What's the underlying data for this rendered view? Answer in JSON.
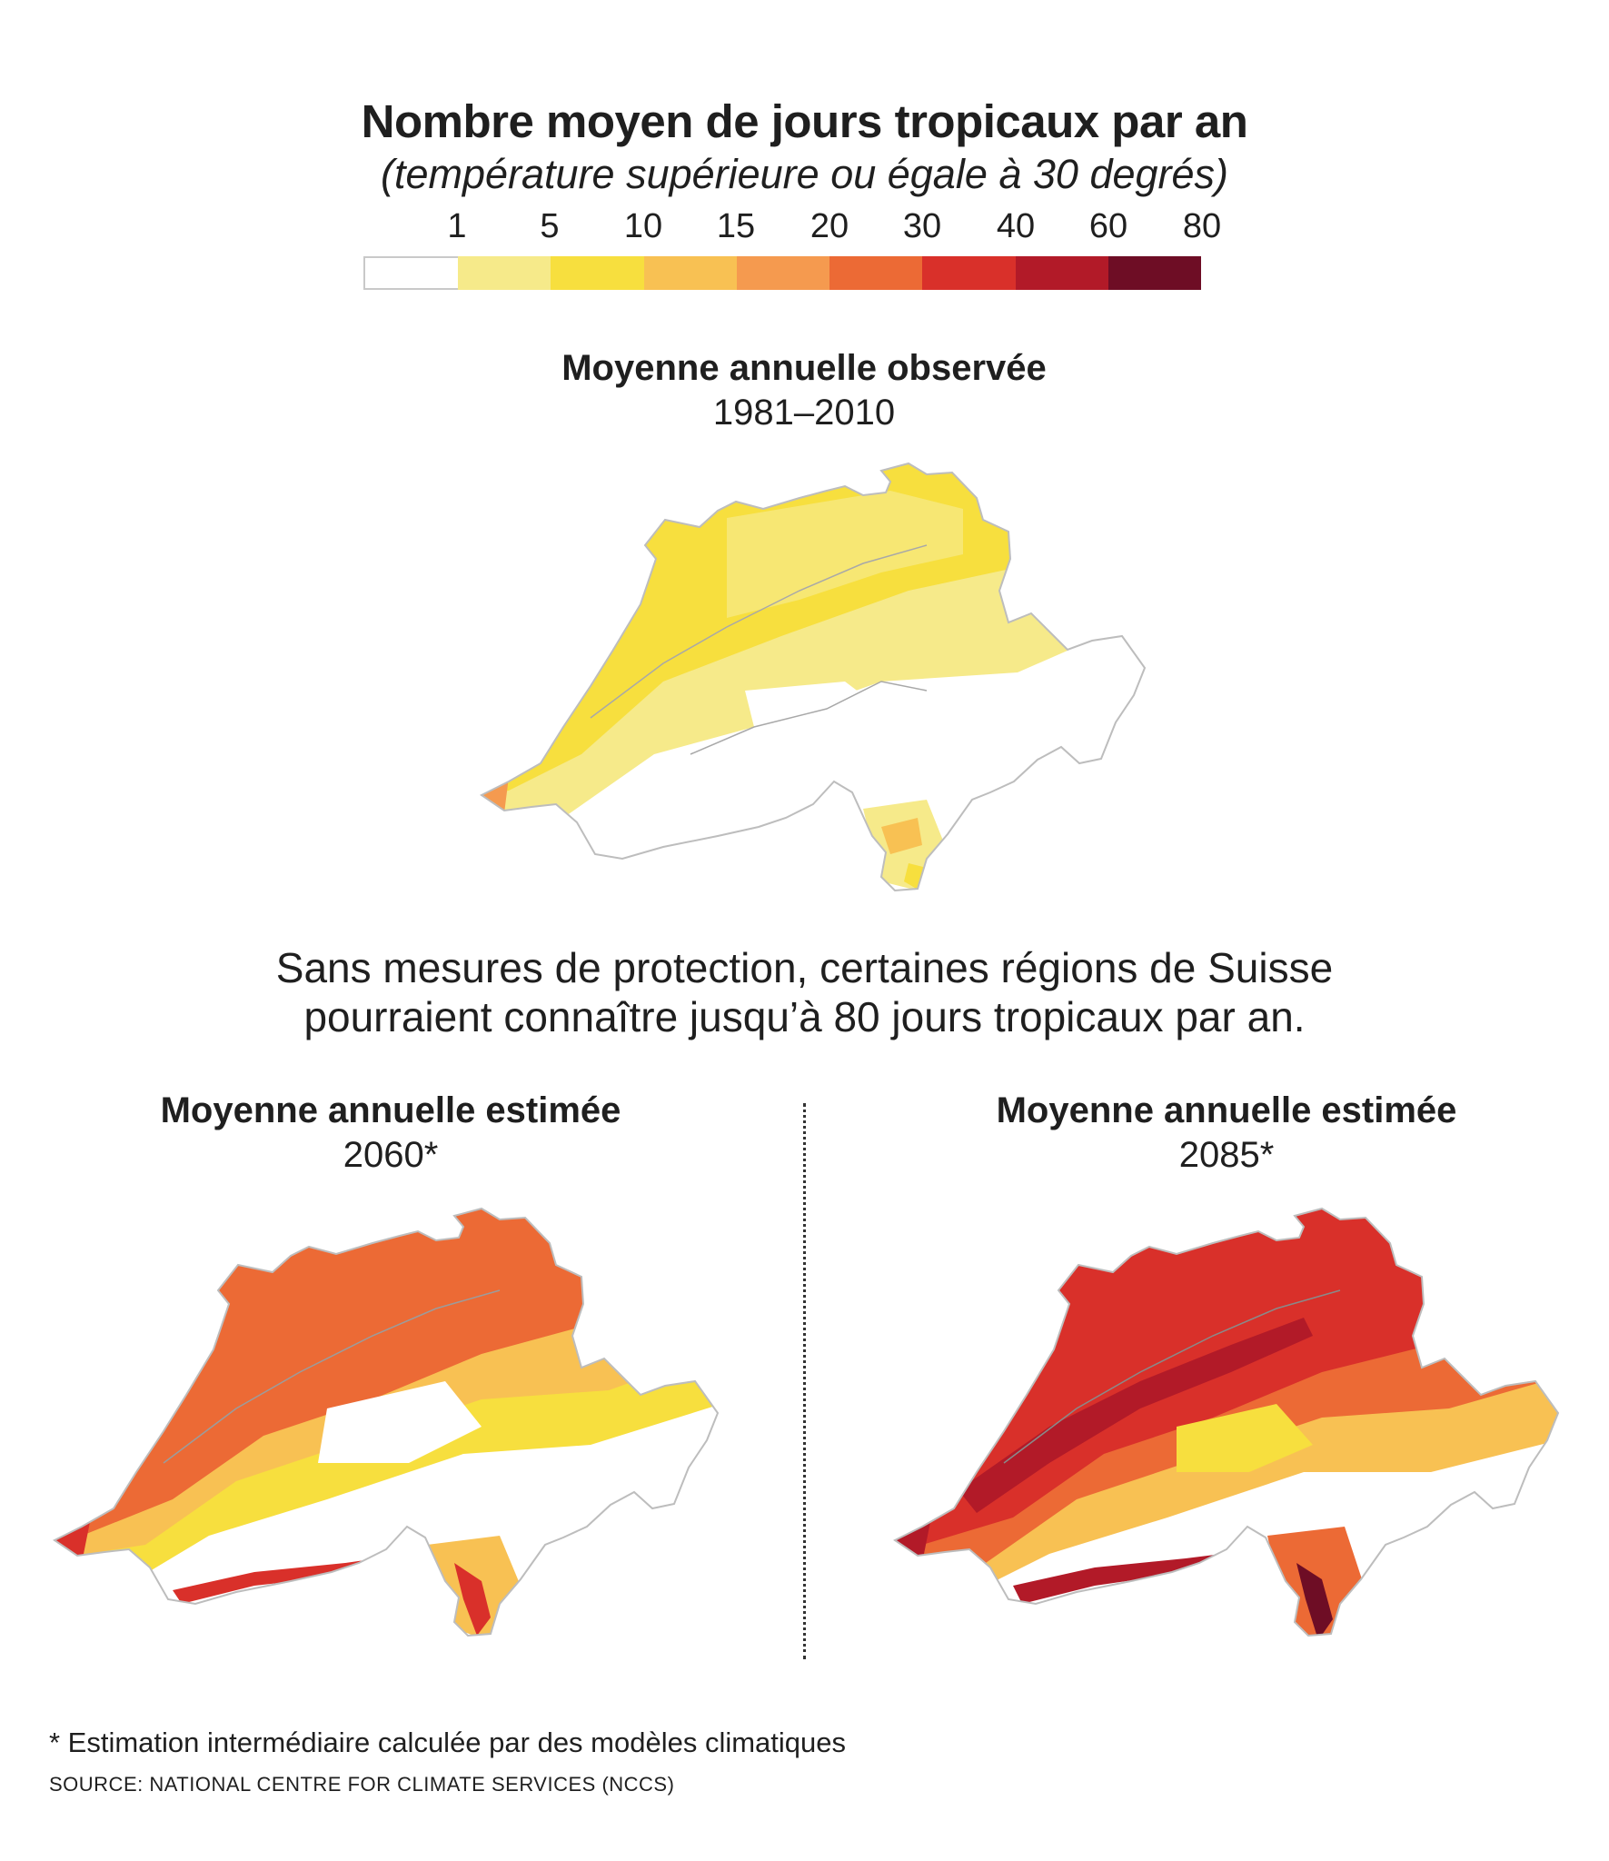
{
  "title": "Nombre moyen de jours tropicaux par an",
  "subtitle": "(température supérieure ou égale à 30 degrés)",
  "legend": {
    "ticks": [
      "1",
      "5",
      "10",
      "15",
      "20",
      "30",
      "40",
      "60",
      "80"
    ],
    "colors": [
      "#ffffff",
      "#f6ea8a",
      "#f7df3e",
      "#f8c153",
      "#f59a4f",
      "#ec6a35",
      "#d9302a",
      "#b21a28",
      "#6e0d25"
    ]
  },
  "maps": [
    {
      "title": "Moyenne annuelle observée",
      "period": "1981–2010"
    },
    {
      "title": "Moyenne annuelle estimée",
      "period": "2060*"
    },
    {
      "title": "Moyenne annuelle estimée",
      "period": "2085*"
    }
  ],
  "claim_line1": "Sans mesures de protection, certaines régions de Suisse",
  "claim_line2": "pourraient connaître jusqu’à 80 jours tropicaux par an.",
  "footnote": "* Estimation intermédiaire calculée par des modèles climatiques",
  "source": "SOURCE: NATIONAL CENTRE FOR CLIMATE SERVICES (NCCS)"
}
